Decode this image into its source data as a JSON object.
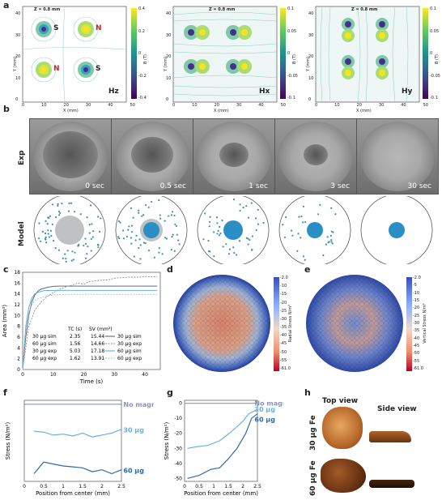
{
  "panel_a": {
    "label": "a",
    "plots": [
      {
        "title": "Z = 0.8 mm",
        "name": "Hz",
        "xlabel": "X (mm)",
        "ylabel": "Y (mm)",
        "xticks": [
          "0",
          "10",
          "20",
          "30",
          "40",
          "50"
        ],
        "yticks": [
          "0",
          "10",
          "20",
          "30",
          "40"
        ],
        "cbar_label": "B (T)",
        "cbar_ticks": [
          "0.4",
          "0.2",
          "0",
          "-0.2",
          "-0.4"
        ],
        "pole_labels": [
          "S",
          "N",
          "N",
          "S"
        ]
      },
      {
        "title": "Z = 0.8 mm",
        "name": "Hx",
        "xlabel": "X (mm)",
        "ylabel": "Y (mm)",
        "xticks": [
          "0",
          "10",
          "20",
          "30",
          "40",
          "50"
        ],
        "yticks": [
          "0",
          "10",
          "20",
          "30",
          "40"
        ],
        "cbar_label": "B (T)",
        "cbar_ticks": [
          "0.1",
          "0.05",
          "0",
          "-0.05",
          "-0.1"
        ]
      },
      {
        "title": "Z = 0.8 mm",
        "name": "Hy",
        "xlabel": "X (mm)",
        "ylabel": "Y (mm)",
        "xticks": [
          "0",
          "10",
          "20",
          "30",
          "40",
          "50"
        ],
        "yticks": [
          "0",
          "10",
          "20",
          "30",
          "40"
        ],
        "cbar_label": "B (T)",
        "cbar_ticks": [
          "0.1",
          "0.05",
          "0",
          "-0.05",
          "-0.1"
        ]
      }
    ]
  },
  "panel_b": {
    "label": "b",
    "row_exp": "Exp",
    "row_model": "Model",
    "times": [
      "0 sec",
      "0.5 sec",
      "1 sec",
      "3 sec",
      "30 sec"
    ]
  },
  "chart_data": [
    {
      "id": "c",
      "type": "line",
      "xlabel": "Time (s)",
      "ylabel": "Area (mm²)",
      "xlim": [
        0,
        45
      ],
      "ylim": [
        0,
        18
      ],
      "xticks": [
        "0",
        "10",
        "20",
        "30",
        "40"
      ],
      "yticks": [
        "0",
        "2",
        "4",
        "6",
        "8",
        "10",
        "12",
        "14",
        "16",
        "18"
      ],
      "table_header": [
        "",
        "TC (s)",
        "SV (mm²)"
      ],
      "table_rows": [
        [
          "30 µg sim",
          "2.35",
          "15.44"
        ],
        [
          "60 µg sim",
          "1.56",
          "14.66"
        ],
        [
          "30 µg exp",
          "5.03",
          "17.18"
        ],
        [
          "60 µg exp",
          "1.62",
          "13.91"
        ]
      ],
      "legend": [
        "30 µg sim",
        "30 µg exp",
        "60 µg sim",
        "60 µg exp"
      ],
      "series": [
        {
          "name": "30 µg sim",
          "color": "#555555",
          "dash": "",
          "x": [
            0,
            1,
            2,
            3,
            4,
            5,
            6,
            8,
            10,
            12,
            15,
            20,
            30,
            44
          ],
          "y": [
            0,
            6,
            10,
            12.5,
            13.8,
            14.5,
            14.9,
            15.2,
            15.4,
            15.44,
            15.44,
            15.44,
            15.44,
            15.44
          ]
        },
        {
          "name": "30 µg exp",
          "color": "#888888",
          "dash": "2,1.5",
          "x": [
            0,
            2,
            4,
            6,
            8,
            10,
            12,
            14,
            16,
            18,
            20,
            22,
            25,
            28,
            30,
            32,
            35,
            38,
            40,
            44
          ],
          "y": [
            0,
            8,
            11,
            12.5,
            13.5,
            14.2,
            14.8,
            15.3,
            15.6,
            16,
            15.8,
            16.3,
            16.5,
            16.6,
            16.9,
            17,
            17.1,
            17.1,
            17.2,
            17.18
          ]
        },
        {
          "name": "60 µg sim",
          "color": "#4aa8d8",
          "dash": "",
          "x": [
            0,
            1,
            2,
            3,
            4,
            5,
            7,
            10,
            15,
            20,
            30,
            44
          ],
          "y": [
            0,
            8,
            11.5,
            13.2,
            14,
            14.3,
            14.6,
            14.66,
            14.66,
            14.66,
            14.66,
            14.66
          ]
        },
        {
          "name": "60 µg exp",
          "color": "#8cc8e8",
          "dash": "2,1.5",
          "x": [
            0,
            1,
            2,
            3,
            4,
            6,
            8,
            10,
            14,
            18,
            22,
            26,
            30,
            35,
            40,
            44
          ],
          "y": [
            0,
            7,
            10.5,
            12,
            12.8,
            13.3,
            13.6,
            13.8,
            13.9,
            13.9,
            13.95,
            13.9,
            13.9,
            13.9,
            13.9,
            13.91
          ]
        }
      ]
    },
    {
      "id": "f",
      "type": "line",
      "xlabel": "Position from center (mm)",
      "ylabel": "Stress (N/m²)",
      "xlim": [
        0,
        2.5
      ],
      "ylim": [
        -40,
        2
      ],
      "xticks": [
        "0",
        "0.5",
        "1",
        "1.5",
        "2",
        "2.5"
      ],
      "series": [
        {
          "name": "No magnet",
          "color": "#8a94b8",
          "x": [
            0,
            0.25,
            0.5,
            1,
            1.5,
            2,
            2.5
          ],
          "y": [
            0,
            0,
            0,
            0,
            0,
            0,
            0
          ]
        },
        {
          "name": "30 µg",
          "color": "#6ab0dc",
          "x": [
            0.25,
            0.5,
            0.75,
            1,
            1.25,
            1.5,
            1.75,
            2,
            2.25,
            2.5
          ],
          "y": [
            -14,
            -14.5,
            -16,
            -15.5,
            -16.5,
            -15,
            -17,
            -16,
            -15,
            -13
          ]
        },
        {
          "name": "60 µg",
          "color": "#2b6ca8",
          "x": [
            0.25,
            0.5,
            0.75,
            1,
            1.25,
            1.5,
            1.75,
            2,
            2.25,
            2.5
          ],
          "y": [
            -36,
            -30,
            -31,
            -32,
            -32.5,
            -33,
            -35,
            -34,
            -36,
            -34
          ]
        }
      ]
    },
    {
      "id": "g",
      "type": "line",
      "xlabel": "Position from center (mm)",
      "ylabel": "Stress (N/m²)",
      "xlim": [
        0,
        2.5
      ],
      "ylim": [
        -52,
        2
      ],
      "xticks": [
        "0",
        "0.5",
        "1",
        "1.5",
        "2",
        "2.5"
      ],
      "yticks": [
        "0",
        "-10",
        "-20",
        "-30",
        "-40",
        "-50"
      ],
      "series": [
        {
          "name": "No magnet",
          "color": "#8a94b8",
          "x": [
            0,
            0.5,
            1,
            1.5,
            2,
            2.5
          ],
          "y": [
            0,
            0,
            0,
            0,
            0,
            0
          ]
        },
        {
          "name": "30 µg",
          "color": "#6ab0dc",
          "x": [
            0.1,
            0.4,
            0.8,
            1.2,
            1.6,
            2,
            2.2,
            2.4,
            2.5
          ],
          "y": [
            -30,
            -29,
            -28,
            -25,
            -19,
            -12,
            -7,
            -5,
            -4
          ]
        },
        {
          "name": "60 µg",
          "color": "#2b6ca8",
          "x": [
            0.1,
            0.5,
            0.9,
            1.2,
            1.5,
            1.8,
            2.1,
            2.3,
            2.5
          ],
          "y": [
            -50,
            -48,
            -44,
            -43,
            -37,
            -30,
            -20,
            -10,
            -7
          ]
        }
      ]
    }
  ],
  "panel_d": {
    "label": "d",
    "cbar_label": "Radial Stress N/m²",
    "cbar_ticks": [
      "-2.0",
      "-10",
      "-15",
      "-20",
      "-25",
      "-30",
      "-35",
      "-40",
      "-45",
      "-50",
      "-55",
      "-61.0"
    ]
  },
  "panel_e": {
    "label": "e",
    "cbar_label": "Vertical Stress N/m²",
    "cbar_ticks": [
      "-2.0",
      "-5",
      "-10",
      "-15",
      "-20",
      "-25",
      "-30",
      "-35",
      "-40",
      "-45",
      "-50",
      "-55",
      "-61.0"
    ]
  },
  "panel_h": {
    "label": "h",
    "col_top": "Top view",
    "col_side": "Side view",
    "row1": "30 µg Fe",
    "row2": "60 µg Fe"
  }
}
